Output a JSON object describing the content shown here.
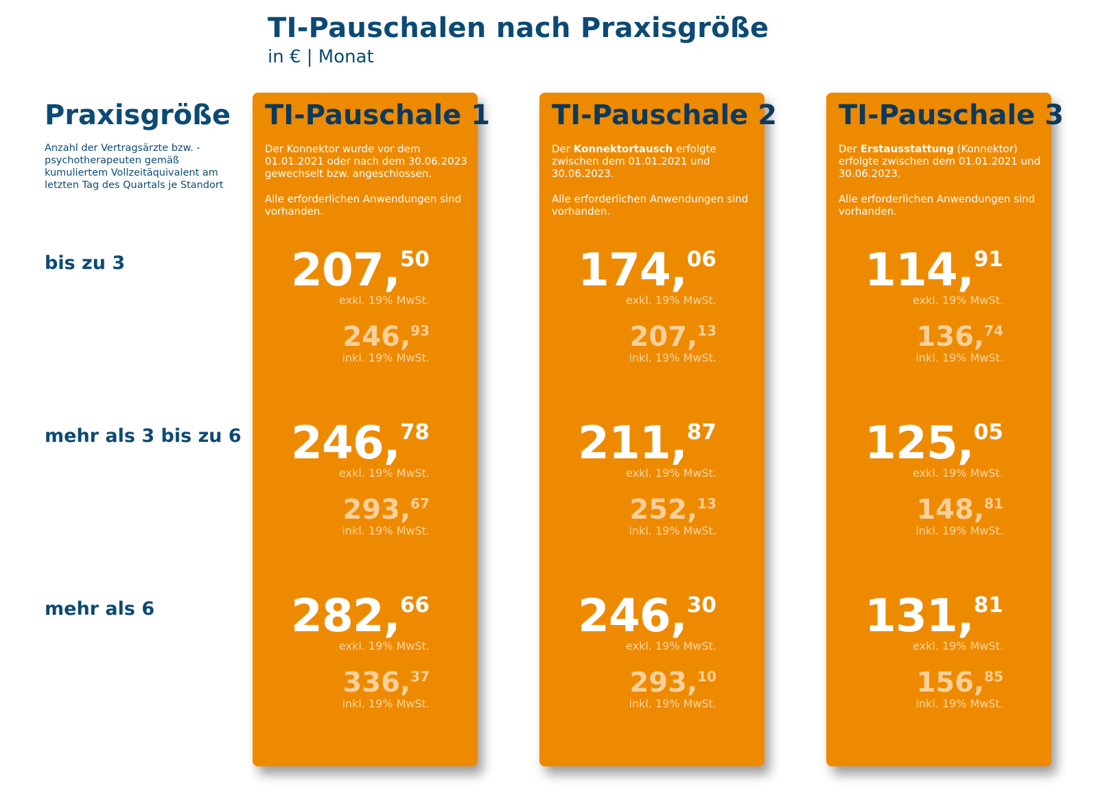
{
  "header": {
    "title": "TI-Pauschalen nach Praxisgröße",
    "subtitle": "in € | Monat"
  },
  "sidebar": {
    "heading": "Praxisgröße",
    "description": "Anzahl der Vertragsärzte bzw. -psychotherapeuten gemäß kumuliertem Vollzeitäquivalent am letzten Tag des Quartals je Standort",
    "rows": [
      "bis zu 3",
      "mehr als 3 bis zu 6",
      "mehr als 6"
    ]
  },
  "labels": {
    "excl": "exkl. 19% MwSt.",
    "incl": "inkl. 19% MwSt."
  },
  "cards": [
    {
      "title": "TI-Pauschale 1",
      "desc_pre": "Der Konnektor wurde vor dem 01.01.2021 oder nach dem 30.06.2023 gewechselt bzw. angeschlossen.",
      "desc_bold": "",
      "desc_post": "",
      "note": "Alle erforderlichen Anwendungen sind vorhanden.",
      "prices": [
        {
          "excl_int": "207,",
          "excl_dec": "50",
          "incl_int": "246,",
          "incl_dec": "93"
        },
        {
          "excl_int": "246,",
          "excl_dec": "78",
          "incl_int": "293,",
          "incl_dec": "67"
        },
        {
          "excl_int": "282,",
          "excl_dec": "66",
          "incl_int": "336,",
          "incl_dec": "37"
        }
      ]
    },
    {
      "title": "TI-Pauschale 2",
      "desc_pre": "Der ",
      "desc_bold": "Konnektortausch",
      "desc_post": " erfolgte zwischen dem 01.01.2021 und 30.06.2023.",
      "note": "Alle erforderlichen Anwendungen sind vorhanden.",
      "prices": [
        {
          "excl_int": "174,",
          "excl_dec": "06",
          "incl_int": "207,",
          "incl_dec": "13"
        },
        {
          "excl_int": "211,",
          "excl_dec": "87",
          "incl_int": "252,",
          "incl_dec": "13"
        },
        {
          "excl_int": "246,",
          "excl_dec": "30",
          "incl_int": "293,",
          "incl_dec": "10"
        }
      ]
    },
    {
      "title": "TI-Pauschale 3",
      "desc_pre": "Der ",
      "desc_bold": "Erstausstattung",
      "desc_post": " (Konnektor) erfolgte zwischen dem 01.01.2021 und 30.06.2023.",
      "note": "Alle erforderlichen Anwendungen sind vorhanden.",
      "prices": [
        {
          "excl_int": "114,",
          "excl_dec": "91",
          "incl_int": "136,",
          "incl_dec": "74"
        },
        {
          "excl_int": "125,",
          "excl_dec": "05",
          "incl_int": "148,",
          "incl_dec": "81"
        },
        {
          "excl_int": "131,",
          "excl_dec": "81",
          "incl_int": "156,",
          "incl_dec": "85"
        }
      ]
    }
  ]
}
